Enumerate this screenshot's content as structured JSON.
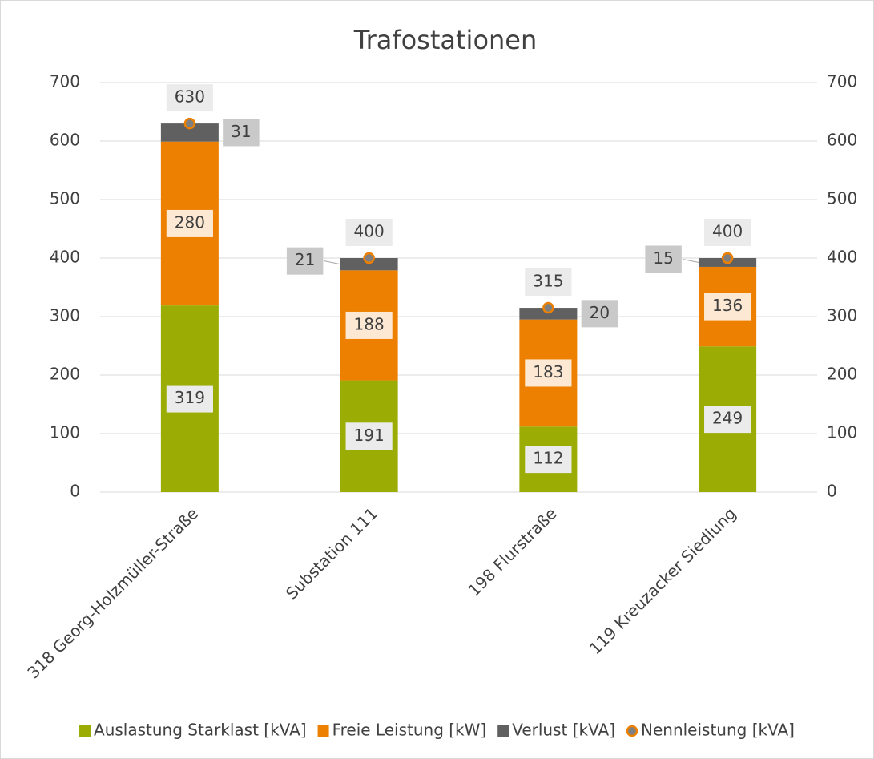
{
  "chart_data": {
    "type": "bar",
    "stacked": true,
    "title": "Trafostationen",
    "categories": [
      "318 Georg-Holzmüller-Straße",
      "Substation 111",
      "198 Flurstraße",
      "119 Kreuzacker Siedlung"
    ],
    "series": [
      {
        "name": "Auslastung Starklast [kVA]",
        "color": "#9bac04",
        "values": [
          319,
          191,
          112,
          249
        ]
      },
      {
        "name": "Freie Leistung [kW]",
        "color": "#ee8001",
        "values": [
          280,
          188,
          183,
          136
        ]
      },
      {
        "name": "Verlust [kVA]",
        "color": "#606060",
        "values": [
          31,
          21,
          20,
          15
        ]
      },
      {
        "name": "Nennleistung [kVA]",
        "type": "scatter",
        "axis": "y2",
        "color": "#ee8001",
        "values": [
          630,
          400,
          315,
          400
        ]
      }
    ],
    "ylim": [
      0,
      700
    ],
    "yticks": [
      0,
      100,
      200,
      300,
      400,
      500,
      600,
      700
    ],
    "y2lim": [
      0,
      700
    ],
    "y2ticks": [
      0,
      100,
      200,
      300,
      400,
      500,
      600,
      700
    ],
    "grid": true,
    "legend": "bottom"
  }
}
